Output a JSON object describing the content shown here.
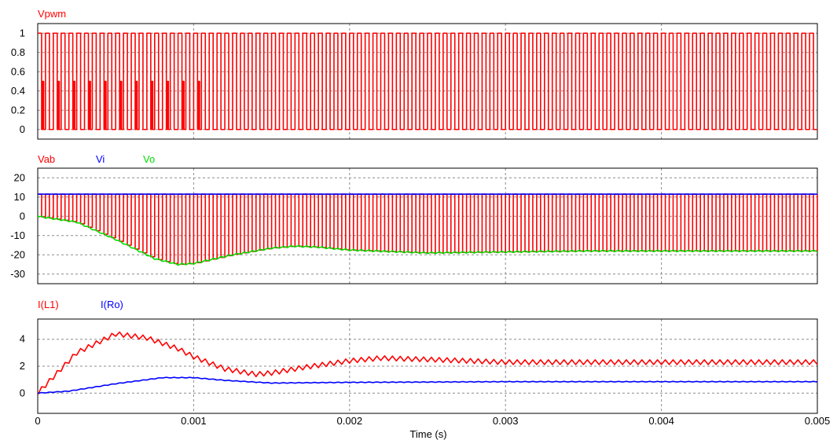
{
  "chart_data": [
    {
      "type": "line",
      "panel": "top",
      "series": [
        {
          "name": "Vpwm",
          "color": "#ff0000",
          "waveform": "pwm_square",
          "levels": [
            0,
            1
          ],
          "mid_level_pulses": 0.5,
          "mid_level_until": 0.0011,
          "periods": 100
        }
      ],
      "xlim": [
        0,
        0.005
      ],
      "ylim": [
        -0.1,
        1.1
      ],
      "yticks": [
        "0",
        "0.2",
        "0.4",
        "0.6",
        "0.8",
        "1"
      ],
      "ytick_values": [
        0,
        0.2,
        0.4,
        0.6,
        0.8,
        1
      ],
      "grid": true
    },
    {
      "type": "line",
      "panel": "middle",
      "series": [
        {
          "name": "Vab",
          "color": "#ff0000",
          "waveform": "switched",
          "high": 11.5,
          "low_follows": "Vo",
          "periods": 100
        },
        {
          "name": "Vi",
          "color": "#0000ff",
          "x": [
            0,
            0.005
          ],
          "y": [
            11.5,
            11.5
          ]
        },
        {
          "name": "Vo",
          "color": "#00dd00",
          "x": [
            0,
            0.00025,
            0.0005,
            0.00075,
            0.0009,
            0.001,
            0.00125,
            0.0015,
            0.00165,
            0.0018,
            0.002,
            0.0025,
            0.003,
            0.0035,
            0.004,
            0.005
          ],
          "y": [
            0,
            -3,
            -12,
            -22,
            -25,
            -24.5,
            -20,
            -16.5,
            -15.5,
            -16,
            -17.5,
            -19,
            -18.5,
            -18,
            -18,
            -18
          ],
          "ripple": 0.8
        }
      ],
      "xlim": [
        0,
        0.005
      ],
      "ylim": [
        -35,
        25
      ],
      "yticks": [
        "20",
        "10",
        "0",
        "-10",
        "-20",
        "-30"
      ],
      "ytick_values": [
        20,
        10,
        0,
        -10,
        -20,
        -30
      ],
      "grid": true
    },
    {
      "type": "line",
      "panel": "bottom",
      "series": [
        {
          "name": "I(L1)",
          "color": "#ff0000",
          "x": [
            0,
            0.00025,
            0.0005,
            0.0007,
            0.0009,
            0.001,
            0.0012,
            0.0014,
            0.0015,
            0.0017,
            0.002,
            0.0022,
            0.0025,
            0.003,
            0.004,
            0.005
          ],
          "y": [
            0,
            3.0,
            4.4,
            4.1,
            3.3,
            2.7,
            1.8,
            1.4,
            1.5,
            1.9,
            2.4,
            2.6,
            2.5,
            2.3,
            2.3,
            2.3
          ],
          "ripple": 0.35
        },
        {
          "name": "I(Ro)",
          "color": "#0000ff",
          "x": [
            0,
            0.0002,
            0.0005,
            0.0008,
            0.001,
            0.0012,
            0.0015,
            0.002,
            0.003,
            0.004,
            0.005
          ],
          "y": [
            0,
            0.15,
            0.7,
            1.15,
            1.15,
            0.95,
            0.75,
            0.8,
            0.85,
            0.85,
            0.85
          ],
          "ripple": 0.05
        }
      ],
      "xlim": [
        0,
        0.005
      ],
      "ylim": [
        -1.5,
        5.5
      ],
      "yticks": [
        "4",
        "2",
        "0"
      ],
      "ytick_values": [
        4,
        2,
        0
      ],
      "grid": true
    }
  ],
  "x_axis": {
    "ticks": [
      "0",
      "0.001",
      "0.002",
      "0.003",
      "0.004",
      "0.005"
    ],
    "tick_values": [
      0,
      0.001,
      0.002,
      0.003,
      0.004,
      0.005
    ],
    "title": "Time (s)"
  }
}
